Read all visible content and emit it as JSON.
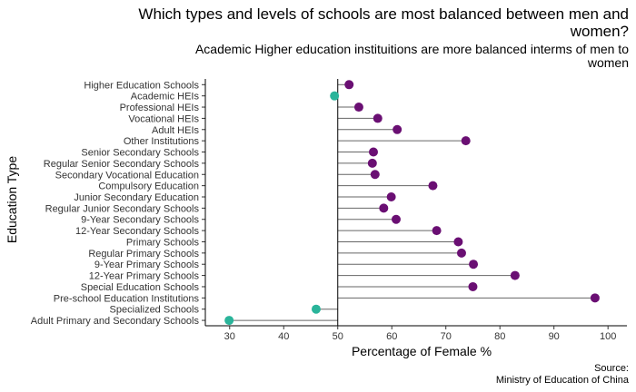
{
  "chart_data": {
    "type": "lollipop",
    "title": "Which types and levels of schools are most balanced between men and women?",
    "subtitle": "Academic Higher education instituitions are more balanced interms of men to women",
    "caption_lines": [
      "Source:",
      "Ministry of Education of China"
    ],
    "xlabel": "Percentage of Female %",
    "ylabel": "Education Type",
    "xlim": [
      25.5,
      103.5
    ],
    "xticks": [
      30,
      40,
      50,
      60,
      70,
      80,
      90,
      100
    ],
    "baseline": 50,
    "colors": {
      "above": "#6a0f73",
      "below": "#2ab49a",
      "stem": "#666666"
    },
    "categories": [
      "Higher Education Schools",
      "Academic HEIs",
      "Professional HEIs",
      "Vocational HEIs",
      "Adult HEIs",
      "Other Institutions",
      "Senior Secondary Schools",
      "Regular Senior Secondary Schools",
      "Secondary Vocational Education",
      "Compulsory Education",
      "Junior Secondary Education",
      "Regular Junior Secondary Schools",
      "9-Year Secondary Schools",
      "12-Year Secondary  Schools",
      "Primary Schools",
      "Regular Primary Schools",
      "9-Year Primary Schools",
      "12-Year Primary Schools",
      "Special Education Schools",
      "Pre-school Education Institutions",
      "Specialized Schools",
      "Adult Primary and Secondary Schools"
    ],
    "values": [
      52.1,
      49.4,
      53.9,
      57.4,
      61.0,
      73.7,
      56.6,
      56.4,
      56.9,
      67.6,
      59.9,
      58.5,
      60.8,
      68.3,
      72.3,
      72.9,
      75.1,
      82.8,
      75.0,
      97.6,
      46.0,
      29.9
    ]
  }
}
